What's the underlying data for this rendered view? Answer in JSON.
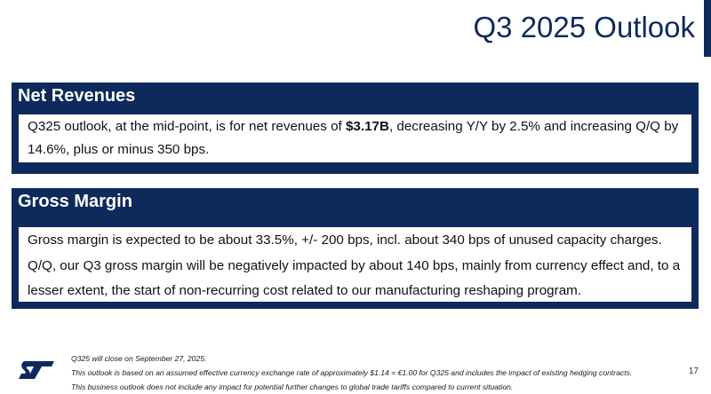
{
  "slide": {
    "title": "Q3 2025 Outlook",
    "page_number": "17"
  },
  "sections": [
    {
      "header": "Net Revenues",
      "body_pre": "Q325 outlook, at the mid-point, is for net revenues of ",
      "body_bold": "$3.17B",
      "body_post": ", decreasing Y/Y by 2.5% and increasing Q/Q by 14.6%, plus or minus 350 bps."
    },
    {
      "header": "Gross Margin",
      "lines": [
        "Gross margin is expected to be about 33.5%, +/- 200 bps, incl. about 340 bps of unused capacity charges.",
        "Q/Q, our Q3 gross margin will be negatively impacted by about 140 bps, mainly from currency effect and, to a lesser extent, the start of non-recurring cost related to our manufacturing reshaping program."
      ]
    }
  ],
  "footnotes": [
    "Q325 will close on September 27, 2025.",
    "This outlook is based on an assumed effective currency exchange rate of approximately $1.14 = €1.00 for Q325 and includes the impact of existing hedging contracts.",
    "This business outlook does not include any impact for potential further changes to global trade tariffs compared to current situation."
  ],
  "logo": {
    "icon": "st-logo-icon",
    "text": "ST",
    "color": "#0e2a5c"
  },
  "colors": {
    "brand_navy": "#0e2a5c",
    "text": "#111111",
    "background": "#ffffff"
  }
}
